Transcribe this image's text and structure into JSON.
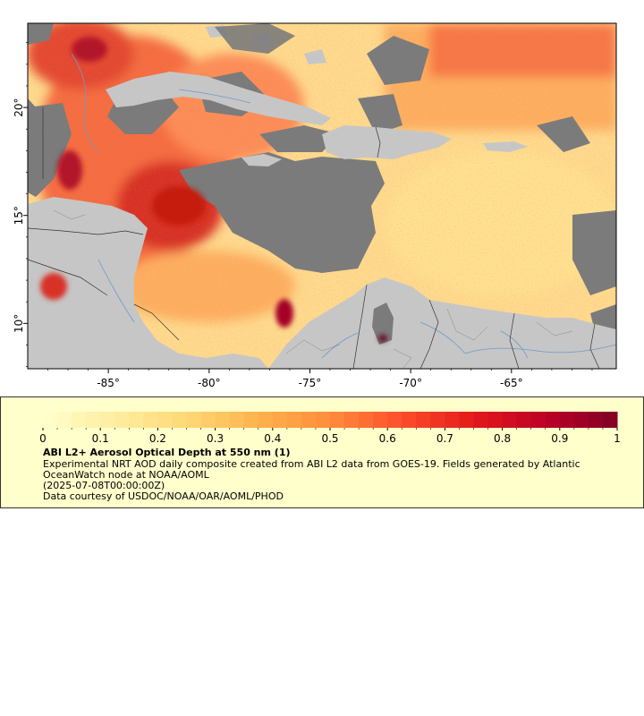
{
  "map": {
    "x_ticks": [
      "-85°",
      "-80°",
      "-75°",
      "-70°",
      "-65°"
    ],
    "y_ticks": [
      "20°",
      "15°",
      "10°"
    ],
    "colors": {
      "land": "#c6c6c6",
      "no_data": "#7b7b7b",
      "rivers": "#6b9bc8",
      "borders": "#333333",
      "frame": "#000000"
    }
  },
  "chart_data": {
    "type": "heatmap",
    "title": "ABI L2+ Aerosol Optical Depth at 550 nm (1)",
    "xlabel": "",
    "ylabel": "",
    "xlim": [
      -89,
      -59.8
    ],
    "ylim": [
      7.9,
      23.9
    ],
    "x_tick_values": [
      -85,
      -80,
      -75,
      -70,
      -65
    ],
    "y_tick_values": [
      20,
      15,
      10
    ],
    "colorbar": {
      "range": [
        0,
        1
      ],
      "tick_values": [
        0,
        0.1,
        0.2,
        0.3,
        0.4,
        0.5,
        0.6,
        0.7,
        0.8,
        0.9,
        1
      ],
      "tick_labels": [
        "0",
        "0.1",
        "0.2",
        "0.3",
        "0.4",
        "0.5",
        "0.6",
        "0.7",
        "0.8",
        "0.9",
        "1"
      ],
      "palette": [
        "#ffffcc",
        "#ffeda0",
        "#fed976",
        "#feb24c",
        "#fd8d3c",
        "#fc4e2a",
        "#e31a1c",
        "#bd0026",
        "#800026"
      ]
    }
  },
  "legend": {
    "title": "ABI L2+ Aerosol Optical Depth at 550 nm (1)",
    "desc_line1": "Experimental NRT AOD daily composite created from ABI L2 data from GOES-19. Fields generated by Atlantic",
    "desc_line2": "OceanWatch node at NOAA/AOML",
    "date": "(2025-07-08T00:00:00Z)",
    "credit": "Data courtesy of USDOC/NOAA/OAR/AOML/PHOD"
  }
}
